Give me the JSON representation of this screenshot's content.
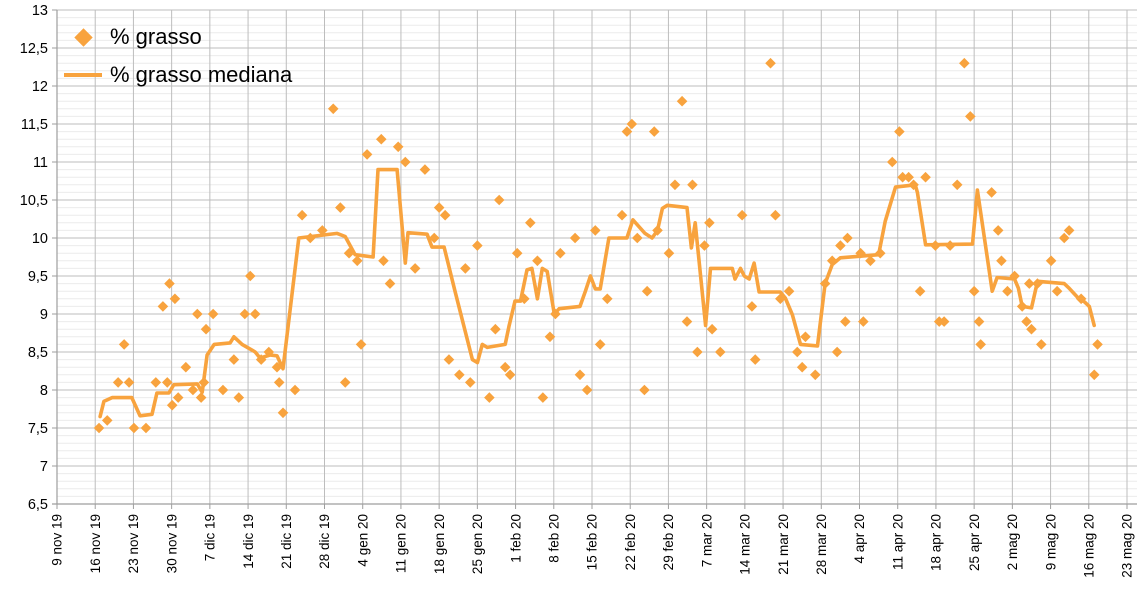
{
  "legend": {
    "series1": {
      "label": "% grasso"
    },
    "series2": {
      "label": "% grasso mediana"
    }
  },
  "colors": {
    "series_orange": "#F8A33E",
    "grid_major": "#bdbdbd",
    "grid_minor": "#ececec",
    "axis": "#9e9e9e",
    "label_text": "#000000"
  },
  "chart_data": {
    "type": "scatter",
    "title": "",
    "xlabel": "",
    "ylabel": "",
    "legend_position": "top-left",
    "grid": "horizontal major every 0.5 with minor every 0.1; vertical weekly",
    "x_axis": {
      "days_per_tick": 7,
      "tick_labels": [
        "9 nov 19",
        "16 nov 19",
        "23 nov 19",
        "30 nov 19",
        "7 dic 19",
        "14 dic 19",
        "21 dic 19",
        "28 dic 19",
        "4 gen 20",
        "11 gen 20",
        "18 gen 20",
        "25 gen 20",
        "1 feb 20",
        "8 feb 20",
        "15 feb 20",
        "22 feb 20",
        "29 feb 20",
        "7 mar 20",
        "14 mar 20",
        "21 mar 20",
        "28 mar 20",
        "4 apr 20",
        "11 apr 20",
        "18 apr 20",
        "25 apr 20",
        "2 mag 20",
        "9 mag 20",
        "16 mag 20",
        "23 mag 20"
      ]
    },
    "y_axis": {
      "min": 6.5,
      "max": 13,
      "major_step": 0.5,
      "minor_step": 0.1,
      "tick_labels": [
        "13",
        "12,5",
        "12",
        "11,5",
        "11",
        "10,5",
        "10",
        "9,5",
        "9",
        "8,5",
        "8",
        "7,5",
        "7",
        "6,5"
      ]
    },
    "series": [
      {
        "name": "% grasso",
        "type": "scatter",
        "marker": "diamond",
        "color": "#F8A33E",
        "points": [
          [
            7.7,
            7.5
          ],
          [
            9.2,
            7.6
          ],
          [
            11.2,
            8.1
          ],
          [
            12.3,
            8.6
          ],
          [
            13.2,
            8.1
          ],
          [
            14.1,
            7.5
          ],
          [
            16.3,
            7.5
          ],
          [
            18.1,
            8.1
          ],
          [
            19.4,
            9.1
          ],
          [
            20.2,
            8.1
          ],
          [
            20.6,
            9.4
          ],
          [
            21.1,
            7.8
          ],
          [
            21.6,
            9.2
          ],
          [
            22.2,
            7.9
          ],
          [
            23.6,
            8.3
          ],
          [
            24.9,
            8.0
          ],
          [
            25.7,
            9.0
          ],
          [
            26.4,
            7.9
          ],
          [
            26.9,
            8.1
          ],
          [
            27.3,
            8.8
          ],
          [
            28.6,
            9.0
          ],
          [
            30.4,
            8.0
          ],
          [
            32.4,
            8.4
          ],
          [
            33.3,
            7.9
          ],
          [
            34.4,
            9.0
          ],
          [
            35.4,
            9.5
          ],
          [
            36.3,
            9.0
          ],
          [
            37.4,
            8.4
          ],
          [
            38.8,
            8.5
          ],
          [
            40.3,
            8.3
          ],
          [
            40.7,
            8.1
          ],
          [
            41.4,
            7.7
          ],
          [
            43.6,
            8.0
          ],
          [
            44.9,
            10.3
          ],
          [
            46.4,
            10.0
          ],
          [
            48.6,
            10.1
          ],
          [
            50.6,
            11.7
          ],
          [
            51.9,
            10.4
          ],
          [
            52.8,
            8.1
          ],
          [
            53.5,
            9.8
          ],
          [
            55.0,
            9.7
          ],
          [
            55.7,
            8.6
          ],
          [
            56.8,
            11.1
          ],
          [
            59.4,
            11.3
          ],
          [
            59.8,
            9.7
          ],
          [
            61.0,
            9.4
          ],
          [
            62.5,
            11.2
          ],
          [
            63.8,
            11.0
          ],
          [
            65.6,
            9.6
          ],
          [
            67.4,
            10.9
          ],
          [
            69.1,
            10.0
          ],
          [
            70.0,
            10.4
          ],
          [
            71.1,
            10.3
          ],
          [
            71.8,
            8.4
          ],
          [
            73.7,
            8.2
          ],
          [
            74.8,
            9.6
          ],
          [
            75.7,
            8.1
          ],
          [
            77.0,
            9.9
          ],
          [
            79.2,
            7.9
          ],
          [
            80.3,
            8.8
          ],
          [
            81.0,
            10.5
          ],
          [
            82.1,
            8.3
          ],
          [
            83.0,
            8.2
          ],
          [
            84.3,
            9.8
          ],
          [
            85.6,
            9.2
          ],
          [
            86.7,
            10.2
          ],
          [
            88.0,
            9.7
          ],
          [
            89.0,
            7.9
          ],
          [
            90.3,
            8.7
          ],
          [
            91.3,
            9.0
          ],
          [
            92.2,
            9.8
          ],
          [
            94.9,
            10.0
          ],
          [
            95.8,
            8.2
          ],
          [
            97.1,
            8.0
          ],
          [
            98.6,
            10.1
          ],
          [
            99.5,
            8.6
          ],
          [
            100.8,
            9.2
          ],
          [
            103.5,
            10.3
          ],
          [
            104.4,
            11.4
          ],
          [
            105.3,
            11.5
          ],
          [
            106.3,
            10.0
          ],
          [
            107.6,
            8.0
          ],
          [
            108.1,
            9.3
          ],
          [
            109.4,
            11.4
          ],
          [
            110.0,
            10.1
          ],
          [
            112.1,
            9.8
          ],
          [
            113.2,
            10.7
          ],
          [
            114.5,
            11.8
          ],
          [
            115.4,
            8.9
          ],
          [
            116.4,
            10.7
          ],
          [
            117.3,
            8.5
          ],
          [
            118.6,
            9.9
          ],
          [
            119.5,
            10.2
          ],
          [
            120.0,
            8.8
          ],
          [
            121.5,
            8.5
          ],
          [
            125.5,
            10.3
          ],
          [
            127.3,
            9.1
          ],
          [
            127.9,
            8.4
          ],
          [
            130.7,
            12.3
          ],
          [
            131.6,
            10.3
          ],
          [
            132.5,
            9.2
          ],
          [
            134.1,
            9.3
          ],
          [
            135.6,
            8.5
          ],
          [
            136.5,
            8.3
          ],
          [
            137.1,
            8.7
          ],
          [
            138.9,
            8.2
          ],
          [
            140.7,
            9.4
          ],
          [
            142.0,
            9.7
          ],
          [
            142.9,
            8.5
          ],
          [
            143.5,
            9.9
          ],
          [
            144.4,
            8.9
          ],
          [
            144.8,
            10.0
          ],
          [
            147.2,
            9.8
          ],
          [
            147.7,
            8.9
          ],
          [
            149.0,
            9.7
          ],
          [
            150.8,
            9.8
          ],
          [
            153.0,
            11.0
          ],
          [
            154.3,
            11.4
          ],
          [
            154.9,
            10.8
          ],
          [
            156.0,
            10.8
          ],
          [
            156.9,
            10.7
          ],
          [
            158.1,
            9.3
          ],
          [
            159.1,
            10.8
          ],
          [
            160.9,
            9.9
          ],
          [
            161.6,
            8.9
          ],
          [
            162.5,
            8.9
          ],
          [
            163.6,
            9.9
          ],
          [
            164.9,
            10.7
          ],
          [
            166.2,
            12.3
          ],
          [
            167.3,
            11.6
          ],
          [
            168.0,
            9.3
          ],
          [
            168.9,
            8.9
          ],
          [
            169.2,
            8.6
          ],
          [
            171.2,
            10.6
          ],
          [
            172.4,
            10.1
          ],
          [
            173.0,
            9.7
          ],
          [
            174.1,
            9.3
          ],
          [
            175.4,
            9.5
          ],
          [
            176.8,
            9.1
          ],
          [
            177.6,
            8.9
          ],
          [
            178.1,
            9.4
          ],
          [
            178.5,
            8.8
          ],
          [
            179.6,
            9.4
          ],
          [
            180.3,
            8.6
          ],
          [
            182.1,
            9.7
          ],
          [
            183.2,
            9.3
          ],
          [
            184.5,
            10.0
          ],
          [
            185.4,
            10.1
          ],
          [
            187.6,
            9.2
          ],
          [
            190.0,
            8.2
          ],
          [
            190.6,
            8.6
          ]
        ]
      },
      {
        "name": "% grasso mediana",
        "type": "line",
        "color": "#F8A33E",
        "points": [
          [
            7.9,
            7.65
          ],
          [
            8.6,
            7.85
          ],
          [
            10.1,
            7.9
          ],
          [
            13.7,
            7.9
          ],
          [
            15.2,
            7.66
          ],
          [
            17.4,
            7.68
          ],
          [
            18.3,
            7.96
          ],
          [
            20.5,
            7.96
          ],
          [
            21.4,
            8.07
          ],
          [
            25.7,
            8.08
          ],
          [
            26.6,
            7.97
          ],
          [
            27.5,
            8.46
          ],
          [
            28.8,
            8.6
          ],
          [
            31.7,
            8.62
          ],
          [
            32.4,
            8.7
          ],
          [
            33.9,
            8.6
          ],
          [
            36.3,
            8.5
          ],
          [
            37.2,
            8.42
          ],
          [
            39.0,
            8.46
          ],
          [
            40.3,
            8.45
          ],
          [
            41.4,
            8.28
          ],
          [
            44.3,
            10.0
          ],
          [
            51.3,
            10.06
          ],
          [
            52.8,
            10.02
          ],
          [
            54.6,
            9.78
          ],
          [
            57.9,
            9.75
          ],
          [
            58.8,
            10.9
          ],
          [
            62.3,
            10.9
          ],
          [
            63.8,
            9.67
          ],
          [
            64.3,
            10.07
          ],
          [
            67.8,
            10.05
          ],
          [
            68.7,
            9.88
          ],
          [
            70.9,
            9.88
          ],
          [
            72.9,
            9.3
          ],
          [
            76.1,
            8.4
          ],
          [
            77.0,
            8.36
          ],
          [
            77.9,
            8.6
          ],
          [
            78.8,
            8.56
          ],
          [
            82.1,
            8.6
          ],
          [
            82.8,
            8.84
          ],
          [
            83.9,
            9.17
          ],
          [
            84.9,
            9.17
          ],
          [
            86.1,
            9.58
          ],
          [
            87.0,
            9.6
          ],
          [
            88.0,
            9.2
          ],
          [
            88.9,
            9.6
          ],
          [
            89.8,
            9.56
          ],
          [
            91.1,
            9.0
          ],
          [
            92.0,
            9.07
          ],
          [
            95.8,
            9.1
          ],
          [
            96.8,
            9.3
          ],
          [
            97.7,
            9.5
          ],
          [
            98.6,
            9.33
          ],
          [
            99.5,
            9.33
          ],
          [
            101.1,
            10.0
          ],
          [
            104.4,
            10.0
          ],
          [
            105.5,
            10.24
          ],
          [
            107.7,
            10.06
          ],
          [
            109.0,
            10.0
          ],
          [
            110.0,
            10.1
          ],
          [
            110.9,
            10.39
          ],
          [
            111.8,
            10.43
          ],
          [
            115.4,
            10.4
          ],
          [
            116.2,
            9.87
          ],
          [
            116.9,
            10.2
          ],
          [
            118.8,
            8.85
          ],
          [
            119.7,
            9.6
          ],
          [
            123.7,
            9.6
          ],
          [
            124.2,
            9.46
          ],
          [
            125.2,
            9.6
          ],
          [
            125.9,
            9.5
          ],
          [
            126.8,
            9.46
          ],
          [
            127.7,
            9.67
          ],
          [
            128.6,
            9.29
          ],
          [
            132.5,
            9.29
          ],
          [
            133.4,
            9.21
          ],
          [
            134.7,
            8.99
          ],
          [
            136.2,
            8.6
          ],
          [
            139.3,
            8.58
          ],
          [
            140.7,
            9.4
          ],
          [
            142.0,
            9.65
          ],
          [
            143.5,
            9.74
          ],
          [
            150.5,
            9.78
          ],
          [
            151.7,
            10.22
          ],
          [
            153.6,
            10.67
          ],
          [
            157.2,
            10.7
          ],
          [
            157.6,
            10.6
          ],
          [
            159.1,
            9.91
          ],
          [
            167.7,
            9.92
          ],
          [
            168.6,
            10.63
          ],
          [
            171.3,
            9.3
          ],
          [
            172.2,
            9.48
          ],
          [
            175.4,
            9.46
          ],
          [
            176.1,
            9.34
          ],
          [
            176.8,
            9.1
          ],
          [
            178.5,
            9.08
          ],
          [
            179.6,
            9.43
          ],
          [
            184.5,
            9.4
          ],
          [
            185.4,
            9.34
          ],
          [
            186.3,
            9.27
          ],
          [
            187.2,
            9.2
          ],
          [
            188.2,
            9.16
          ],
          [
            189.1,
            9.1
          ],
          [
            190.0,
            8.85
          ]
        ]
      }
    ]
  }
}
